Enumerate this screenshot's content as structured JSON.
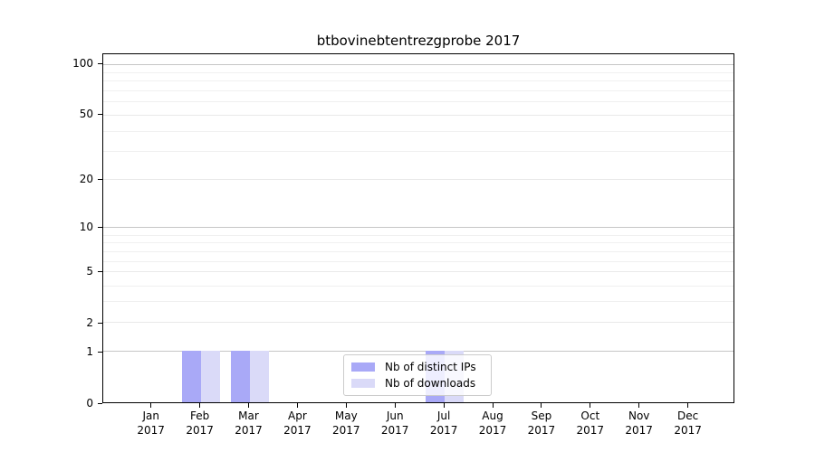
{
  "chart_data": {
    "type": "bar",
    "title": "btbovinebtentrezgprobe 2017",
    "categories": [
      "Jan",
      "Feb",
      "Mar",
      "Apr",
      "May",
      "Jun",
      "Jul",
      "Aug",
      "Sep",
      "Oct",
      "Nov",
      "Dec"
    ],
    "year": "2017",
    "series": [
      {
        "name": "Nb of distinct IPs",
        "color": "#a9a9f7",
        "values": [
          0,
          1,
          1,
          0,
          0,
          0,
          1,
          0,
          0,
          0,
          0,
          0
        ]
      },
      {
        "name": "Nb of downloads",
        "color": "#dadaf8",
        "values": [
          0,
          1,
          1,
          0,
          0,
          0,
          1,
          0,
          0,
          0,
          0,
          0
        ]
      }
    ],
    "y_axis": {
      "ticks": [
        100,
        50,
        20,
        10,
        5,
        2,
        1,
        0
      ],
      "scale": "log",
      "range": [
        0,
        100
      ]
    },
    "x_axis": {
      "months_shown": 12
    },
    "legend": {
      "position": "lower center"
    },
    "grid": "horizontal"
  }
}
